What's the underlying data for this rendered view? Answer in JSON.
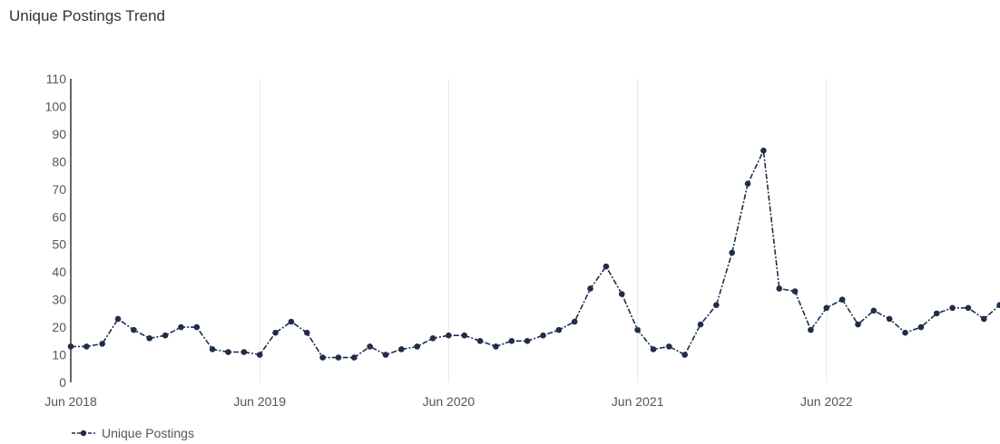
{
  "chart_data": {
    "type": "line",
    "title": "Unique Postings Trend",
    "xlabel": "",
    "ylabel": "",
    "x_tick_labels": [
      "Jun 2018",
      "Jun 2019",
      "Jun 2020",
      "Jun 2021",
      "Jun 2022"
    ],
    "ylim": [
      0,
      110
    ],
    "y_ticks": [
      0,
      10,
      20,
      30,
      40,
      50,
      60,
      70,
      80,
      90,
      100,
      110
    ],
    "grid": "vertical",
    "legend_position": "bottom-left",
    "x": [
      "2018-06",
      "2018-07",
      "2018-08",
      "2018-09",
      "2018-10",
      "2018-11",
      "2018-12",
      "2019-01",
      "2019-02",
      "2019-03",
      "2019-04",
      "2019-05",
      "2019-06",
      "2019-07",
      "2019-08",
      "2019-09",
      "2019-10",
      "2019-11",
      "2019-12",
      "2020-01",
      "2020-02",
      "2020-03",
      "2020-04",
      "2020-05",
      "2020-06",
      "2020-07",
      "2020-08",
      "2020-09",
      "2020-10",
      "2020-11",
      "2020-12",
      "2021-01",
      "2021-02",
      "2021-03",
      "2021-04",
      "2021-05",
      "2021-06",
      "2021-07",
      "2021-08",
      "2021-09",
      "2021-10",
      "2021-11",
      "2021-12",
      "2022-01",
      "2022-02",
      "2022-03",
      "2022-04",
      "2022-05",
      "2022-06",
      "2022-07",
      "2022-08",
      "2022-09",
      "2022-10",
      "2022-11",
      "2022-12",
      "2023-01",
      "2023-02",
      "2023-03",
      "2023-04",
      "2023-05"
    ],
    "series": [
      {
        "name": "Unique Postings",
        "color": "#1f2d4a",
        "values": [
          13,
          13,
          14,
          23,
          19,
          16,
          17,
          20,
          20,
          12,
          11,
          11,
          10,
          18,
          22,
          18,
          9,
          9,
          9,
          13,
          10,
          12,
          13,
          16,
          17,
          17,
          15,
          13,
          15,
          15,
          17,
          19,
          22,
          34,
          42,
          32,
          19,
          12,
          13,
          10,
          21,
          28,
          47,
          72,
          84,
          34,
          33,
          19,
          27,
          30,
          21,
          26,
          23,
          18,
          20,
          25,
          27,
          27,
          23,
          28
        ]
      }
    ]
  }
}
